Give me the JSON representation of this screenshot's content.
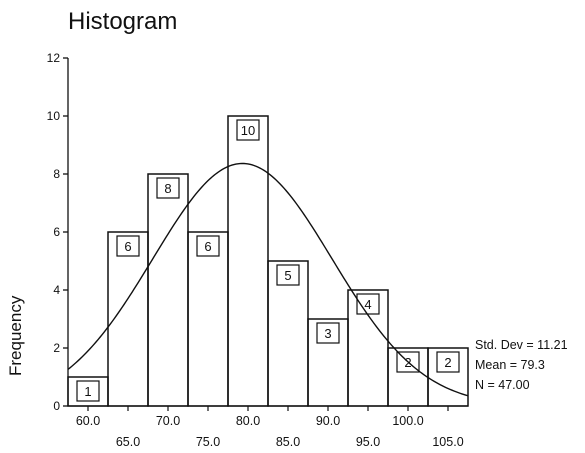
{
  "chart_data": {
    "type": "bar",
    "title": "Histogram",
    "xlabel": "",
    "ylabel": "Frequency",
    "categories": [
      "60.0",
      "65.0",
      "70.0",
      "75.0",
      "80.0",
      "85.0",
      "90.0",
      "95.0",
      "100.0",
      "105.0"
    ],
    "values": [
      1,
      6,
      8,
      6,
      10,
      5,
      3,
      4,
      2,
      2
    ],
    "ylim": [
      0,
      12
    ],
    "yticks": [
      "0",
      "2",
      "4",
      "6",
      "8",
      "10",
      "12"
    ],
    "grid": false,
    "normal_curve": {
      "mean": 79.3,
      "std_dev": 11.21,
      "n": 47
    },
    "stats_labels": [
      "Std. Dev = 11.21",
      "Mean = 79.3",
      "N = 47.00"
    ]
  }
}
